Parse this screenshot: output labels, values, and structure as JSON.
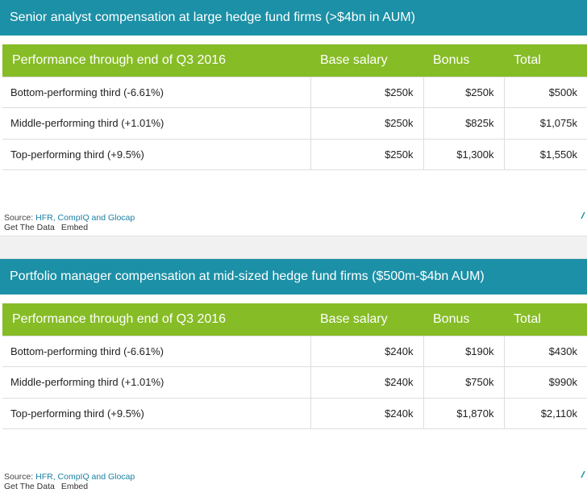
{
  "tables": [
    {
      "title": "Senior analyst compensation at large hedge fund firms (>$4bn in AUM)",
      "headers": [
        "Performance through end of Q3 2016",
        "Base salary",
        "Bonus",
        "Total"
      ],
      "rows": [
        [
          "Bottom-performing third (-6.61%)",
          "$250k",
          "$250k",
          "$500k"
        ],
        [
          "Middle-performing third (+1.01%)",
          "$250k",
          "$825k",
          "$1,075k"
        ],
        [
          "Top-performing third (+9.5%)",
          "$250k",
          "$1,300k",
          "$1,550k"
        ]
      ],
      "source_label": "Source: ",
      "source_text": "HFR, CompIQ and Glocap",
      "get_data_label": "Get The Data",
      "embed_label": "Embed"
    },
    {
      "title": "Portfolio manager compensation at mid-sized hedge fund firms ($500m-$4bn AUM)",
      "headers": [
        "Performance through end of Q3 2016",
        "Base salary",
        "Bonus",
        "Total"
      ],
      "rows": [
        [
          "Bottom-performing third (-6.61%)",
          "$240k",
          "$190k",
          "$430k"
        ],
        [
          "Middle-performing third (+1.01%)",
          "$240k",
          "$750k",
          "$990k"
        ],
        [
          "Top-performing third (+9.5%)",
          "$240k",
          "$1,870k",
          "$2,110k"
        ]
      ],
      "source_label": "Source: ",
      "source_text": "HFR, CompIQ and Glocap",
      "get_data_label": "Get The Data",
      "embed_label": "Embed"
    }
  ],
  "colors": {
    "title_bar": "#1b90a6",
    "header_row": "#86bc25",
    "link": "#1b7fa3"
  }
}
